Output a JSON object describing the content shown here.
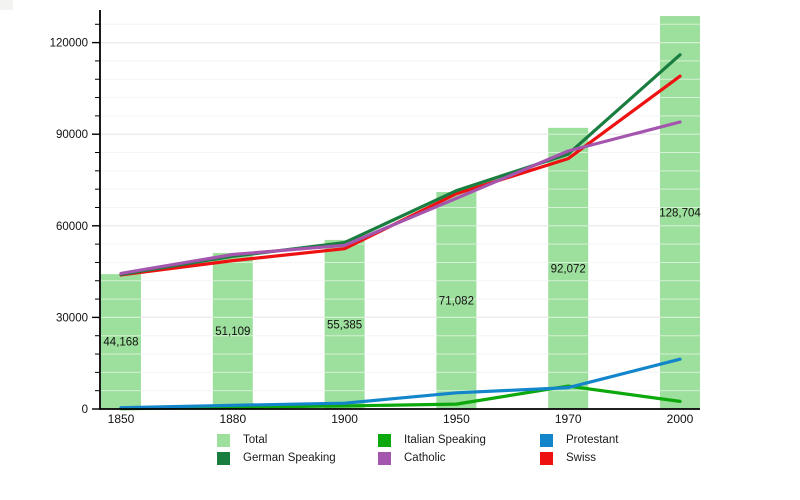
{
  "chart_data": {
    "type": "bar+line",
    "title": "",
    "categories": [
      "1850",
      "1880",
      "1900",
      "1950",
      "1970",
      "2000"
    ],
    "bar_series": {
      "name": "Total",
      "color": "#9ddf9d",
      "values": [
        44168,
        51109,
        55385,
        71082,
        92072,
        128704
      ],
      "labels": [
        "44,168",
        "51,109",
        "55,385",
        "71,082",
        "92,072",
        "128,704"
      ]
    },
    "line_series": [
      {
        "name": "Italian Speaking",
        "color": "#0ca80c",
        "values": [
          100,
          600,
          1000,
          1600,
          7500,
          2500
        ]
      },
      {
        "name": "Protestant",
        "color": "#1386cb",
        "values": [
          400,
          1200,
          1900,
          5300,
          7000,
          16300
        ]
      },
      {
        "name": "Swiss",
        "color": "#ee1111",
        "values": [
          43900,
          48600,
          52500,
          70500,
          82000,
          109000
        ]
      },
      {
        "name": "German Speaking",
        "color": "#1a7d40",
        "values": [
          44100,
          50000,
          54500,
          71500,
          83500,
          116000
        ]
      },
      {
        "name": "Catholic",
        "color": "#a455ae",
        "values": [
          44400,
          50600,
          53600,
          69000,
          84500,
          94000
        ]
      }
    ],
    "y_axis": {
      "min": 0,
      "max": 130700,
      "major_step": 30000,
      "minor_step": 6000,
      "tick_labels": [
        "0",
        "30000",
        "60000",
        "90000",
        "120000"
      ]
    },
    "x_axis": {
      "tick_labels": [
        "1850",
        "1880",
        "1900",
        "1950",
        "1970",
        "2000"
      ]
    },
    "grid": true,
    "legend_position": "bottom"
  },
  "legend": {
    "columns": [
      [
        {
          "label": "Total",
          "color": "#9ddf9d"
        },
        {
          "label": "German Speaking",
          "color": "#1a7d40"
        }
      ],
      [
        {
          "label": "Italian Speaking",
          "color": "#0ca80c"
        },
        {
          "label": "Catholic",
          "color": "#a455ae"
        }
      ],
      [
        {
          "label": "Protestant",
          "color": "#1386cb"
        },
        {
          "label": "Swiss",
          "color": "#ee1111"
        }
      ]
    ]
  },
  "colors": {
    "axis": "#000000",
    "grid_major": "#d4d4d4",
    "grid_minor": "#ececec",
    "grid_over_bars": "rgba(255,255,255,0.55)",
    "label_text": "#111111"
  }
}
